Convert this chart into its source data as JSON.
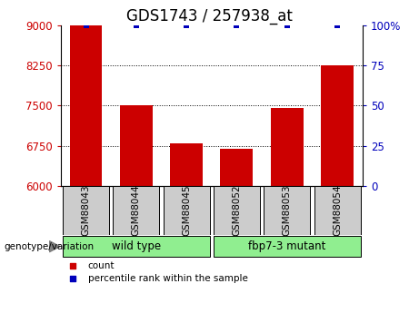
{
  "title": "GDS1743 / 257938_at",
  "categories": [
    "GSM88043",
    "GSM88044",
    "GSM88045",
    "GSM88052",
    "GSM88053",
    "GSM88054"
  ],
  "bar_values": [
    9000,
    7500,
    6800,
    6700,
    7450,
    8250
  ],
  "percentile_values": [
    100,
    100,
    100,
    100,
    100,
    100
  ],
  "bar_color": "#cc0000",
  "percentile_color": "#0000bb",
  "ylim_left": [
    6000,
    9000
  ],
  "ylim_right": [
    0,
    100
  ],
  "yticks_left": [
    6000,
    6750,
    7500,
    8250,
    9000
  ],
  "yticks_right": [
    0,
    25,
    50,
    75,
    100
  ],
  "grid_values": [
    6750,
    7500,
    8250
  ],
  "group1_label": "wild type",
  "group2_label": "fbp7-3 mutant",
  "group1_indices": [
    0,
    1,
    2
  ],
  "group2_indices": [
    3,
    4,
    5
  ],
  "group_bg_color": "#90ee90",
  "sample_box_color": "#cccccc",
  "legend_count_label": "count",
  "legend_pct_label": "percentile rank within the sample",
  "genotype_label": "genotype/variation",
  "left_tick_color": "#cc0000",
  "right_tick_color": "#0000bb",
  "title_fontsize": 12,
  "tick_fontsize": 8.5,
  "cat_fontsize": 7.5,
  "group_fontsize": 8.5,
  "legend_fontsize": 7.5,
  "genotype_fontsize": 7.5
}
